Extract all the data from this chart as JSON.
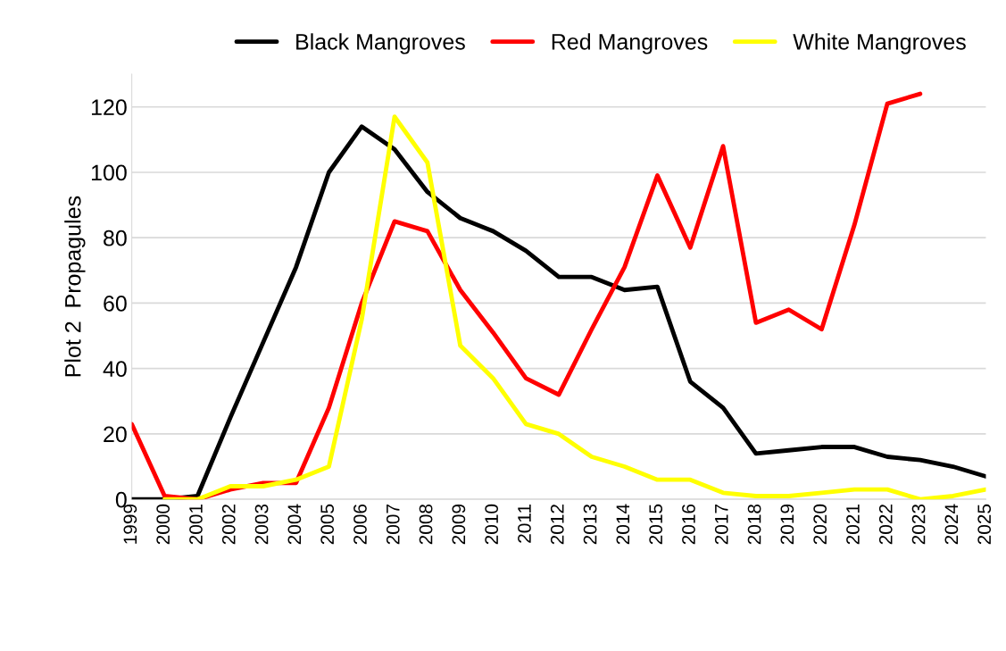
{
  "chart_data": {
    "type": "line",
    "ylabel": "Plot 2  Propagules",
    "categories": [
      "1999",
      "2000",
      "2001",
      "2002",
      "2003",
      "2004",
      "2005",
      "2006",
      "2007",
      "2008",
      "2009",
      "2010",
      "2011",
      "2012",
      "2013",
      "2014",
      "2015",
      "2016",
      "2017",
      "2018",
      "2019",
      "2020",
      "2021",
      "2022",
      "2023",
      "2024",
      "2025"
    ],
    "series": [
      {
        "name": "Black Mangroves",
        "color": "#000000",
        "values": [
          0,
          0,
          1,
          25,
          48,
          71,
          100,
          114,
          107,
          94,
          86,
          82,
          76,
          68,
          68,
          64,
          65,
          36,
          28,
          14,
          15,
          16,
          16,
          13,
          12,
          10,
          7
        ]
      },
      {
        "name": "Red Mangroves",
        "color": "#ff0000",
        "values": [
          23,
          1,
          0,
          3,
          5,
          5,
          28,
          60,
          85,
          82,
          64,
          51,
          37,
          32,
          52,
          71,
          99,
          77,
          108,
          54,
          58,
          52,
          84,
          121,
          124,
          null,
          null
        ]
      },
      {
        "name": "White Mangroves",
        "color": "#ffff00",
        "values": [
          null,
          0,
          0,
          4,
          4,
          6,
          10,
          55,
          117,
          103,
          47,
          37,
          23,
          20,
          13,
          10,
          6,
          6,
          2,
          1,
          1,
          2,
          3,
          3,
          0,
          1,
          3
        ]
      }
    ],
    "ylim": [
      0,
      130
    ],
    "yticks": [
      0,
      20,
      40,
      60,
      80,
      100,
      120
    ],
    "grid": "y",
    "legend": "top",
    "marker": "none",
    "line_style": "solid"
  }
}
